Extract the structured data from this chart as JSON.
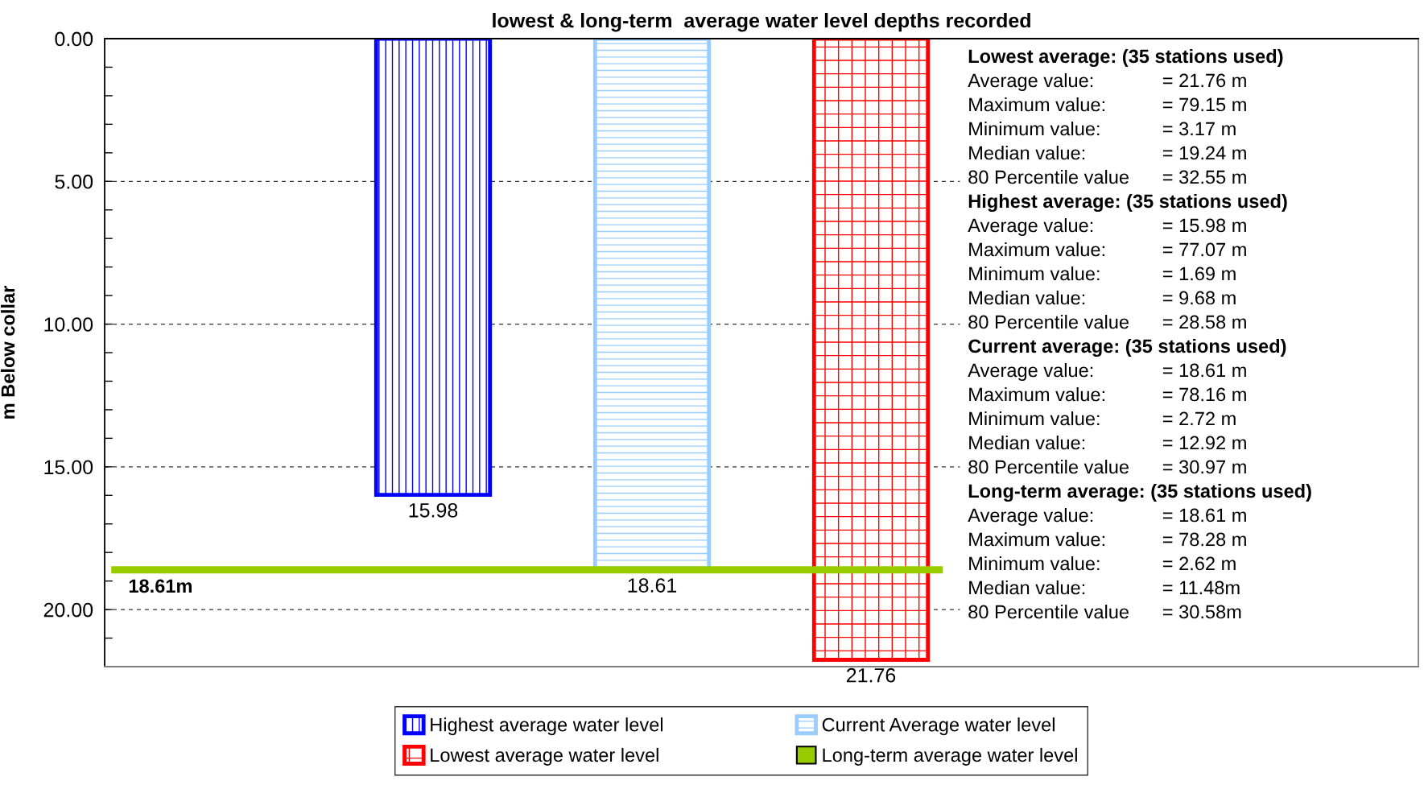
{
  "chart_data": {
    "type": "bar",
    "title": "lowest & long-term  average water level depths recorded",
    "ylabel": "m Below collar",
    "categories": [
      null,
      null,
      null,
      null,
      null,
      null
    ],
    "stacked": true,
    "tick_labels": "y",
    "series": [
      {
        "name": "Highest average water level",
        "color": "#0000ff",
        "values": [
          null,
          15.98,
          null,
          null,
          null,
          null
        ]
      },
      {
        "name": "Current Average water level",
        "color": "#99ccff",
        "values": [
          null,
          null,
          18.61,
          null,
          null,
          null
        ]
      },
      {
        "name": "Lowest average water level",
        "color": "#ff0000",
        "values": [
          null,
          null,
          null,
          21.76,
          null,
          null
        ]
      }
    ],
    "ylim": [
      22,
      0
    ],
    "yticks": [
      {
        "value": 0,
        "label": "0.00"
      },
      {
        "value": 1,
        "label": null
      },
      {
        "value": 2,
        "label": null
      },
      {
        "value": 3,
        "label": null
      },
      {
        "value": 4,
        "label": null
      },
      {
        "value": 5,
        "label": "5.00"
      },
      {
        "value": 6,
        "label": null
      },
      {
        "value": 7,
        "label": null
      },
      {
        "value": 8,
        "label": null
      },
      {
        "value": 9,
        "label": null
      },
      {
        "value": 10,
        "label": "10.00"
      },
      {
        "value": 11,
        "label": null
      },
      {
        "value": 12,
        "label": null
      },
      {
        "value": 13,
        "label": null
      },
      {
        "value": 14,
        "label": null
      },
      {
        "value": 15,
        "label": "15.00"
      },
      {
        "value": 16,
        "label": null
      },
      {
        "value": 17,
        "label": null
      },
      {
        "value": 18,
        "label": null
      },
      {
        "value": 19,
        "label": null
      },
      {
        "value": 20,
        "label": "20.00"
      },
      {
        "value": 21,
        "label": null
      }
    ],
    "grid": "y",
    "legend": "bottom",
    "data_labels": true,
    "ref_lines": [
      {
        "axis": "y",
        "value": 18.61,
        "label": "Long-term average water level",
        "color": "#99cc00"
      }
    ],
    "annotations": [
      {
        "text": "18.61m",
        "y": 18.61
      },
      "Lowest average: (35 stations used)",
      "Average value:\t= 21.76 m",
      "Maximum value:\t= 79.15 m",
      "Minimum value:\t= 3.17 m",
      "Median value:\t= 19.24 m",
      "80 Percentile value\t= 32.55 m",
      "Highest average: (35 stations used)",
      "Average value:\t= 15.98 m",
      "Maximum value:\t= 77.07 m",
      "Minimum value:\t= 1.69 m",
      "Median value:\t= 9.68 m",
      "80 Percentile value\t= 28.58 m",
      "Current average: (35 stations used)",
      "Average value:\t= 18.61 m",
      "Maximum value:\t= 78.16 m",
      "Minimum value:\t= 2.72 m",
      "Median value:\t= 12.92 m",
      "80 Percentile value\t= 30.97 m",
      "Long-term average: (35 stations used)",
      "Average value:\t= 18.61 m",
      "Maximum value:\t= 78.28 m",
      "Minimum value:\t= 2.62 m",
      "Median value:\t= 11.48m",
      "80 Percentile value\t= 30.58m"
    ]
  }
}
